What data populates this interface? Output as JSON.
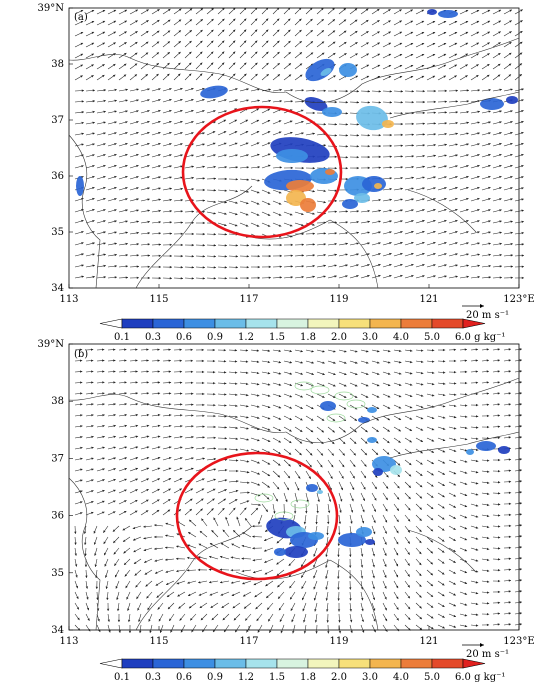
{
  "panels": [
    {
      "tag": "(a)",
      "lat_labels": [
        "39°N",
        "38",
        "37",
        "36",
        "35",
        "34"
      ],
      "lon_labels": [
        "113",
        "115",
        "117",
        "119",
        "121",
        "123°E"
      ],
      "scale_label": "20 m s⁻¹",
      "flow": "westerly",
      "circle_color": "#e8141b"
    },
    {
      "tag": "(b)",
      "lat_labels": [
        "39°N",
        "38",
        "37",
        "36",
        "35",
        "34"
      ],
      "lon_labels": [
        "113",
        "115",
        "117",
        "119",
        "121",
        "123°E"
      ],
      "scale_label": "20 m s⁻¹",
      "flow": "cyclonic",
      "circle_color": "#e8141b"
    }
  ],
  "colorbar": {
    "ticks": [
      "0.1",
      "0.3",
      "0.6",
      "0.9",
      "1.2",
      "1.5",
      "1.8",
      "2.0",
      "3.0",
      "4.0",
      "5.0",
      "6.0 g kg⁻¹"
    ],
    "colors": [
      "#1f3fbf",
      "#2a65d6",
      "#3d8fe3",
      "#6bbde8",
      "#a6e3ec",
      "#d8f3e0",
      "#f2f5bd",
      "#f7e07a",
      "#f3b54f",
      "#ec7d3a",
      "#e44a2a"
    ]
  }
}
